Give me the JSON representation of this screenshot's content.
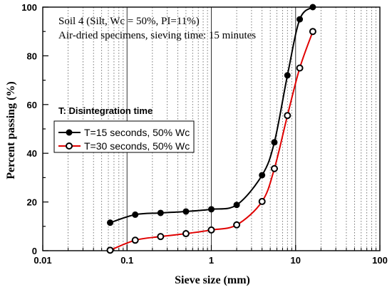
{
  "chart_data": {
    "type": "line",
    "x_scale": "log",
    "xlim": [
      0.01,
      100
    ],
    "ylim": [
      0,
      100
    ],
    "xlabel": "Sieve size (mm)",
    "ylabel": "Percent passing  (%)",
    "x_ticks": [
      {
        "value": 0.01,
        "label": "0.01"
      },
      {
        "value": 0.1,
        "label": "0.1"
      },
      {
        "value": 1,
        "label": "1"
      },
      {
        "value": 10,
        "label": "10"
      },
      {
        "value": 100,
        "label": "100"
      }
    ],
    "y_ticks": [
      {
        "value": 0,
        "label": "0"
      },
      {
        "value": 20,
        "label": "20"
      },
      {
        "value": 40,
        "label": "40"
      },
      {
        "value": 60,
        "label": "60"
      },
      {
        "value": 80,
        "label": "80"
      },
      {
        "value": 100,
        "label": "100"
      }
    ],
    "grid": "log-minor dotted, major solid",
    "annotations": [
      "Soil 4 (Silt, Wc = 50%, PI=11%)",
      "Air-dried specimens, sieving time: 15 minutes"
    ],
    "legend": {
      "title": "T: Disintegration time",
      "placement": "middle-left"
    },
    "series": [
      {
        "name": "T=15 seconds, 50% Wc",
        "color": "#000000",
        "marker": "filled-circle",
        "x": [
          0.063,
          0.125,
          0.25,
          0.5,
          1.0,
          2.0,
          4.0,
          5.6,
          8.0,
          11.2,
          16.0
        ],
        "y": [
          11.5,
          14.8,
          15.5,
          16.1,
          17.0,
          18.8,
          31.0,
          44.5,
          72.0,
          95.0,
          100.0
        ]
      },
      {
        "name": "T=30 seconds, 50% Wc",
        "color": "#e00000",
        "marker": "open-circle",
        "x": [
          0.063,
          0.125,
          0.25,
          0.5,
          1.0,
          2.0,
          4.0,
          5.6,
          8.0,
          11.2,
          16.0
        ],
        "y": [
          0.2,
          4.3,
          5.8,
          7.0,
          8.5,
          10.6,
          20.2,
          33.7,
          55.5,
          75.0,
          90.0
        ]
      }
    ]
  }
}
